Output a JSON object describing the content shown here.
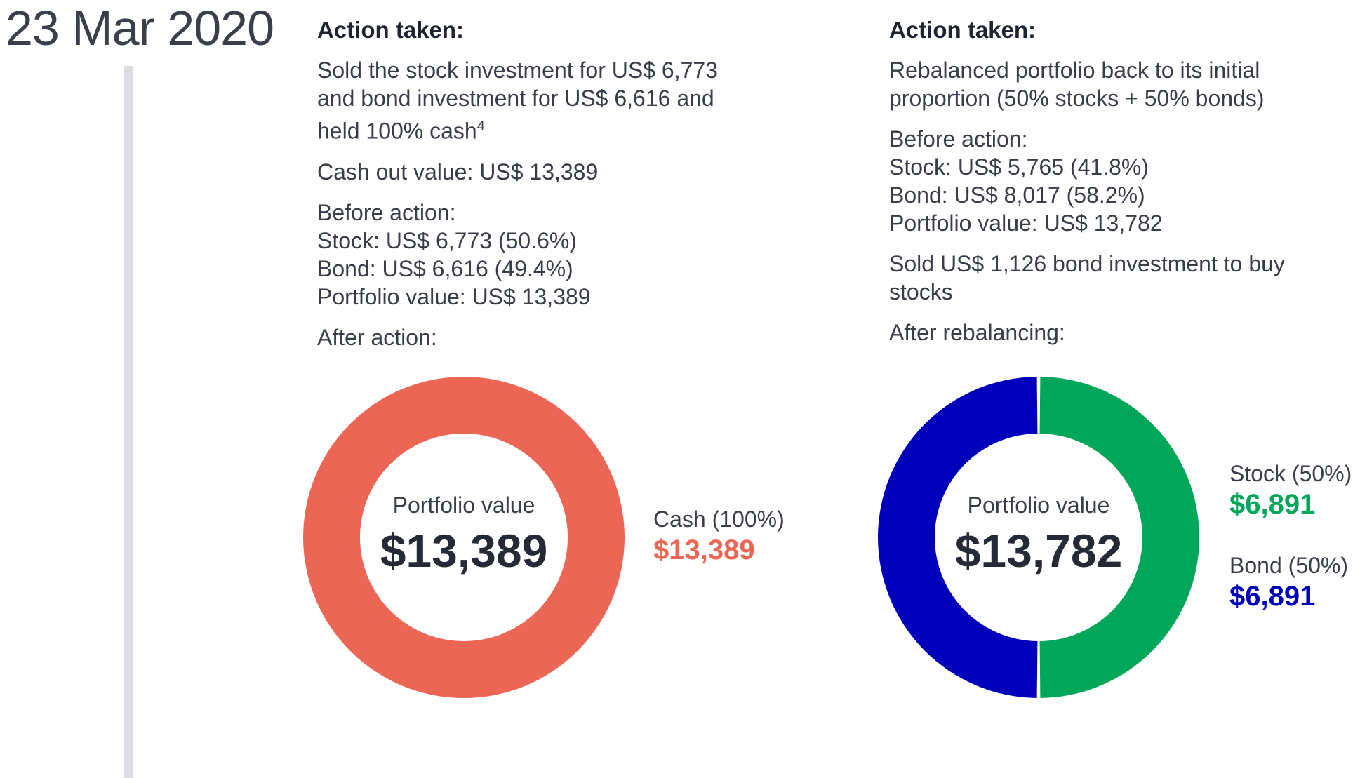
{
  "date": "23 Mar 2020",
  "left": {
    "heading": "Action taken:",
    "action_lines": [
      "Sold the stock investment for US$ 6,773",
      "and bond investment for US$ 6,616 and",
      "held 100% cash"
    ],
    "footnote": "4",
    "cash_out": "Cash out value: US$ 13,389",
    "before_lines": [
      "Before action:",
      "Stock: US$ 6,773 (50.6%)",
      "Bond: US$ 6,616 (49.4%)",
      "Portfolio value: US$ 13,389"
    ],
    "after_label": "After action:"
  },
  "right": {
    "heading": "Action taken:",
    "action_lines": [
      "Rebalanced portfolio back to its initial",
      "proportion (50% stocks + 50% bonds)"
    ],
    "before_lines": [
      "Before action:",
      "Stock: US$ 5,765 (41.8%)",
      "Bond: US$ 8,017 (58.2%)",
      "Portfolio value: US$ 13,782"
    ],
    "sold_lines": [
      "Sold US$ 1,126 bond investment to buy",
      "stocks"
    ],
    "after_label": "After rebalancing:"
  },
  "chart_data": [
    {
      "type": "pie",
      "center_label": "Portfolio value",
      "center_value": "$13,389",
      "slices": [
        {
          "label": "Cash (100%)",
          "value": 13389,
          "display": "$13,389",
          "color": "#EC6655"
        }
      ]
    },
    {
      "type": "pie",
      "center_label": "Portfolio value",
      "center_value": "$13,782",
      "slices": [
        {
          "label": "Stock (50%)",
          "value": 6891,
          "display": "$6,891",
          "color": "#00A65A"
        },
        {
          "label": "Bond (50%)",
          "value": 6891,
          "display": "$6,891",
          "color": "#0000BB"
        }
      ]
    }
  ]
}
